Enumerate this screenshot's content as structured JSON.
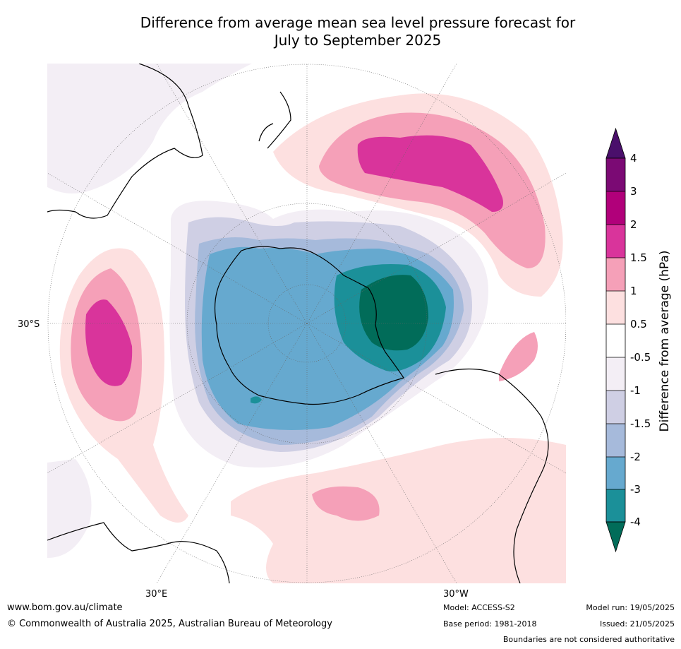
{
  "title": "Difference from average mean sea level pressure forecast for\nJuly to September 2025",
  "map": {
    "projection": "south-polar-stereographic",
    "lat_labels": [
      "30°S"
    ],
    "lon_labels": [
      "30°E",
      "30°W"
    ]
  },
  "colorbar": {
    "label": "Difference from average (hPa)",
    "ticks": [
      "4",
      "3",
      "2",
      "1.5",
      "1",
      "0.5",
      "-0.5",
      "-1",
      "-1.5",
      "-2",
      "-3",
      "-4"
    ],
    "colors": {
      "gt4": "#4a0f6b",
      "3to4": "#7b0a74",
      "2to3": "#b1007a",
      "1.5to2": "#d9349b",
      "1to1.5": "#f5a0b8",
      "0.5to1": "#fde0e0",
      "neutral": "#ffffff",
      "m0.5tom1": "#f3eef5",
      "m1tom1.5": "#cfcfe4",
      "m1.5tom2": "#a6badb",
      "m2tom3": "#66a9cf",
      "m3tom4": "#1b9099",
      "lt_m4": "#016c59"
    }
  },
  "footer": {
    "url": "www.bom.gov.au/climate",
    "copyright": "© Commonwealth of Australia 2025, Australian Bureau of Meteorology",
    "model": "Model: ACCESS-S2",
    "base_period": "Base period: 1981-2018",
    "model_run": "Model run: 19/05/2025",
    "issued": "Issued: 21/05/2025",
    "disclaimer": "Boundaries are not considered authoritative"
  }
}
